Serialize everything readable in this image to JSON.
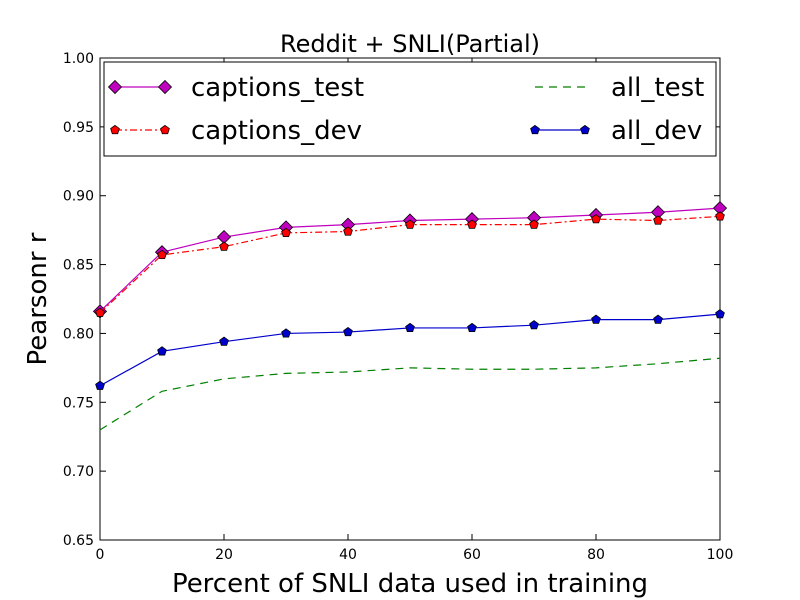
{
  "chart_data": {
    "type": "line",
    "title": "Reddit + SNLI(Partial)",
    "xlabel": "Percent of SNLI data used in training",
    "ylabel": "Pearsonr r",
    "xlim": [
      0,
      100
    ],
    "ylim": [
      0.65,
      1.0
    ],
    "xticks": [
      0,
      20,
      40,
      60,
      80,
      100
    ],
    "yticks": [
      0.65,
      0.7,
      0.75,
      0.8,
      0.85,
      0.9,
      0.95,
      1.0
    ],
    "ytick_labels": [
      "0.65",
      "0.70",
      "0.75",
      "0.80",
      "0.85",
      "0.90",
      "0.95",
      "1.00"
    ],
    "grid": false,
    "legend_position": "top",
    "x": [
      0,
      10,
      20,
      30,
      40,
      50,
      60,
      70,
      80,
      90,
      100
    ],
    "series": [
      {
        "name": "captions_test",
        "color": "#bf00bf",
        "line": "solid",
        "marker": "diamond",
        "values": [
          0.816,
          0.859,
          0.87,
          0.877,
          0.879,
          0.882,
          0.883,
          0.884,
          0.886,
          0.888,
          0.891
        ]
      },
      {
        "name": "captions_dev",
        "color": "#ff0000",
        "line": "dashdot",
        "marker": "pentagon",
        "values": [
          0.815,
          0.857,
          0.863,
          0.873,
          0.874,
          0.879,
          0.879,
          0.879,
          0.883,
          0.882,
          0.885
        ]
      },
      {
        "name": "all_test",
        "color": "#008000",
        "line": "dashed",
        "marker": "none",
        "values": [
          0.73,
          0.758,
          0.767,
          0.771,
          0.772,
          0.775,
          0.774,
          0.774,
          0.775,
          0.778,
          0.782
        ]
      },
      {
        "name": "all_dev",
        "color": "#0000cc",
        "line": "solid",
        "marker": "pentagon",
        "values": [
          0.762,
          0.787,
          0.794,
          0.8,
          0.801,
          0.804,
          0.804,
          0.806,
          0.81,
          0.81,
          0.814
        ]
      }
    ]
  }
}
